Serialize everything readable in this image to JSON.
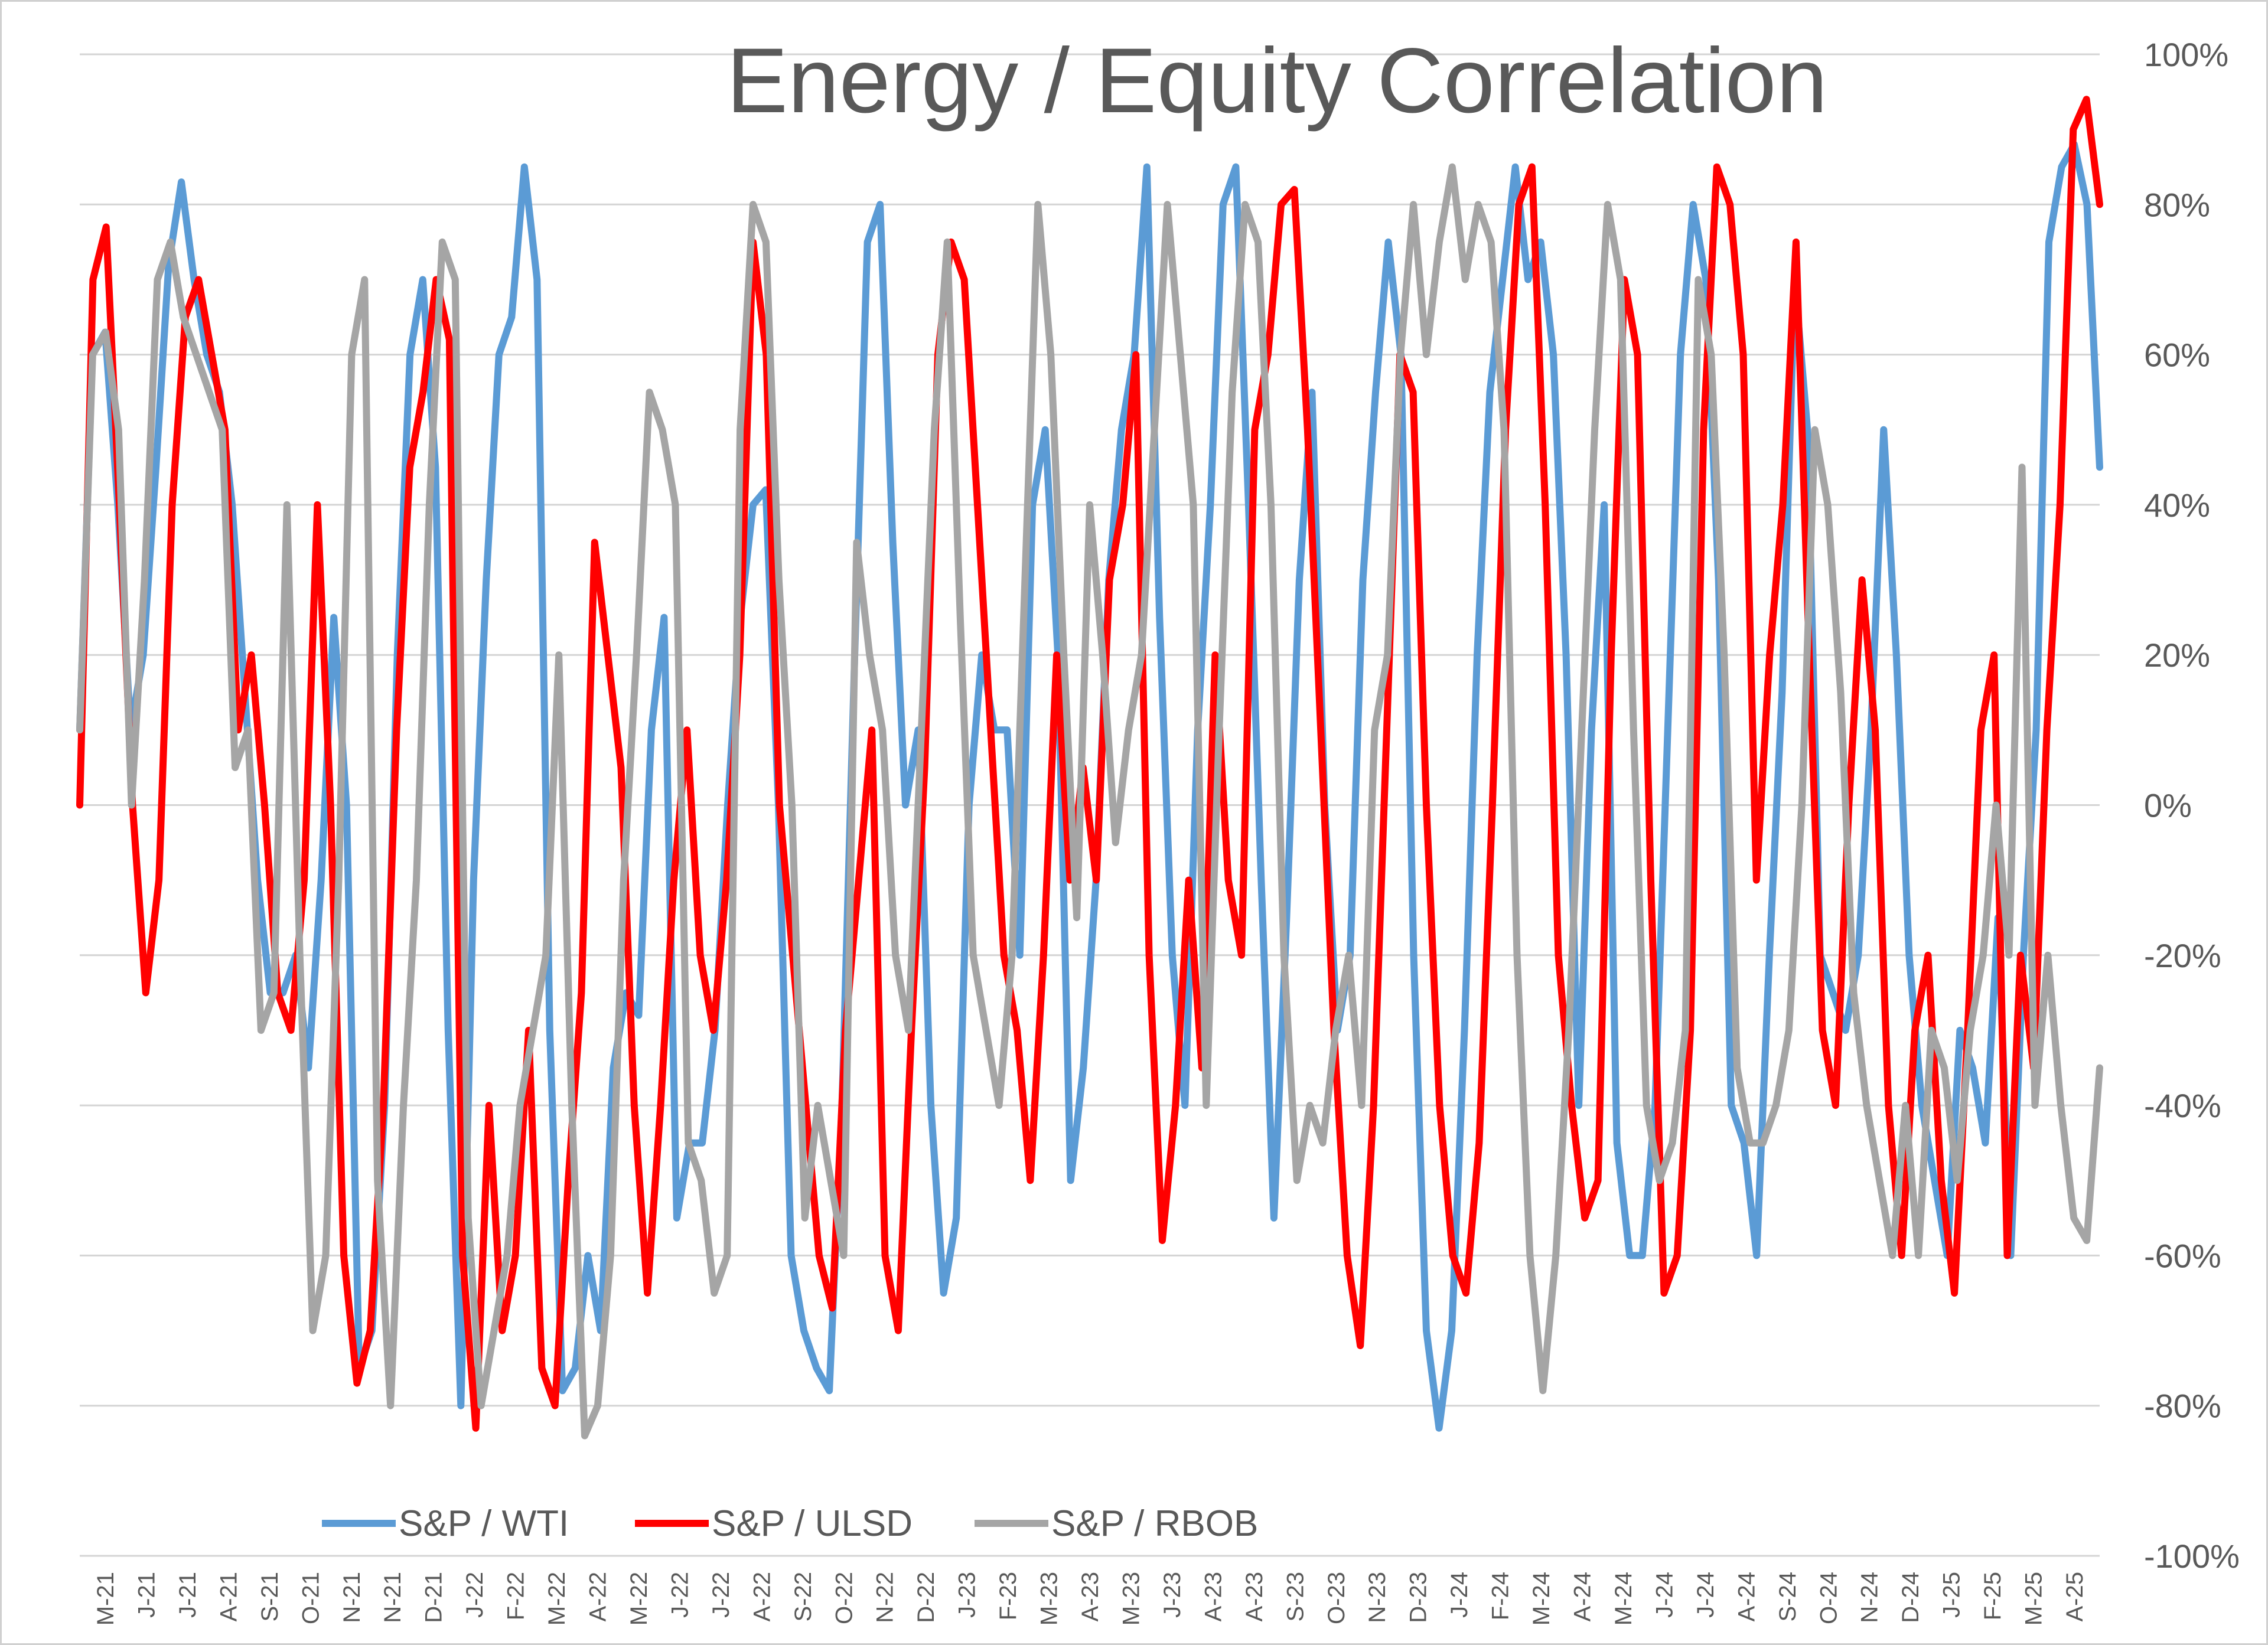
{
  "chart_data": {
    "type": "line",
    "title": "Energy / Equity Correlation",
    "xlabel": "",
    "ylabel": "",
    "ylim": [
      -100,
      100
    ],
    "y_ticks": [
      "100%",
      "80%",
      "60%",
      "40%",
      "20%",
      "0%",
      "-20%",
      "-40%",
      "-60%",
      "-80%",
      "-100%"
    ],
    "x_ticks": [
      "M-21",
      "J-21",
      "J-21",
      "A-21",
      "S-21",
      "O-21",
      "N-21",
      "N-21",
      "D-21",
      "J-22",
      "F-22",
      "M-22",
      "A-22",
      "M-22",
      "J-22",
      "J-22",
      "A-22",
      "S-22",
      "O-22",
      "N-22",
      "D-22",
      "J-23",
      "F-23",
      "M-23",
      "A-23",
      "M-23",
      "J-23",
      "A-23",
      "A-23",
      "S-23",
      "O-23",
      "N-23",
      "D-23",
      "J-24",
      "F-24",
      "M-24",
      "A-24",
      "M-24",
      "J-24",
      "J-24",
      "A-24",
      "S-24",
      "O-24",
      "N-24",
      "D-24",
      "J-25",
      "F-25",
      "M-25",
      "A-25"
    ],
    "grid": true,
    "legend_position": "bottom",
    "colors": {
      "wti": "#5B9BD5",
      "ulsd": "#FF0000",
      "rbob": "#A5A5A5"
    },
    "series": [
      {
        "name": "S&P / WTI",
        "color": "#5B9BD5",
        "values": [
          10,
          60,
          63,
          40,
          10,
          20,
          45,
          72,
          83,
          70,
          60,
          55,
          40,
          15,
          -10,
          -25,
          -25,
          -20,
          -35,
          -10,
          25,
          0,
          -75,
          -70,
          -40,
          20,
          60,
          70,
          45,
          -30,
          -80,
          -10,
          30,
          60,
          65,
          85,
          70,
          -30,
          -78,
          -75,
          -60,
          -70,
          -35,
          -25,
          -28,
          10,
          25,
          -55,
          -45,
          -45,
          -30,
          0,
          25,
          40,
          42,
          0,
          -60,
          -70,
          -75,
          -78,
          -40,
          20,
          75,
          80,
          35,
          0,
          10,
          -40,
          -65,
          -55,
          0,
          20,
          10,
          10,
          -20,
          40,
          50,
          20,
          -50,
          -35,
          -10,
          30,
          50,
          60,
          85,
          25,
          -20,
          -40,
          10,
          40,
          80,
          85,
          40,
          -10,
          -55,
          -15,
          30,
          55,
          0,
          -30,
          -20,
          30,
          55,
          75,
          60,
          -20,
          -70,
          -83,
          -70,
          -30,
          20,
          55,
          70,
          85,
          70,
          75,
          60,
          20,
          -40,
          10,
          40,
          -45,
          -60,
          -60,
          -40,
          10,
          60,
          80,
          70,
          30,
          -40,
          -45,
          -60,
          -20,
          15,
          70,
          50,
          -20,
          -25,
          -30,
          -20,
          10,
          50,
          20,
          -20,
          -40,
          -50,
          -60,
          -30,
          -35,
          -45,
          -15,
          -60,
          -20,
          10,
          75,
          85,
          88,
          80,
          45
        ]
      },
      {
        "name": "S&P / ULSD",
        "color": "#FF0000",
        "values": [
          0,
          70,
          77,
          40,
          0,
          -25,
          -10,
          40,
          65,
          70,
          60,
          50,
          10,
          20,
          0,
          -25,
          -30,
          -10,
          40,
          0,
          -60,
          -77,
          -70,
          -40,
          10,
          45,
          55,
          70,
          62,
          -60,
          -83,
          -40,
          -70,
          -60,
          -30,
          -75,
          -80,
          -50,
          -25,
          35,
          20,
          5,
          -40,
          -65,
          -40,
          -10,
          10,
          -20,
          -30,
          -10,
          20,
          75,
          60,
          0,
          -20,
          -40,
          -60,
          -67,
          -30,
          -10,
          10,
          -60,
          -70,
          -30,
          5,
          60,
          75,
          70,
          40,
          10,
          -20,
          -30,
          -50,
          -20,
          20,
          -10,
          5,
          -10,
          30,
          40,
          60,
          -20,
          -58,
          -40,
          -10,
          -35,
          20,
          -10,
          -20,
          50,
          60,
          80,
          82,
          50,
          10,
          -30,
          -60,
          -72,
          -40,
          10,
          60,
          55,
          0,
          -40,
          -60,
          -65,
          -45,
          0,
          50,
          80,
          85,
          40,
          -20,
          -40,
          -55,
          -50,
          20,
          70,
          60,
          -10,
          -65,
          -60,
          -30,
          50,
          85,
          80,
          60,
          -10,
          20,
          40,
          75,
          20,
          -30,
          -40,
          0,
          30,
          10,
          -40,
          -60,
          -30,
          -20,
          -50,
          -65,
          -30,
          10,
          20,
          -60,
          -20,
          -35,
          10,
          40,
          90,
          94,
          80
        ]
      },
      {
        "name": "S&P / RBOB",
        "color": "#A5A5A5",
        "values": [
          10,
          60,
          63,
          50,
          0,
          30,
          70,
          75,
          65,
          60,
          55,
          50,
          5,
          10,
          -30,
          -25,
          40,
          -20,
          -70,
          -60,
          -10,
          60,
          70,
          -50,
          -80,
          -40,
          -10,
          40,
          75,
          70,
          -55,
          -80,
          -70,
          -60,
          -40,
          -30,
          -20,
          20,
          -40,
          -84,
          -80,
          -60,
          -10,
          20,
          55,
          50,
          40,
          -45,
          -50,
          -65,
          -60,
          50,
          80,
          75,
          30,
          0,
          -55,
          -40,
          -50,
          -60,
          35,
          20,
          10,
          -20,
          -30,
          10,
          50,
          75,
          25,
          -20,
          -30,
          -40,
          -20,
          30,
          80,
          60,
          20,
          -15,
          40,
          20,
          -5,
          10,
          20,
          50,
          80,
          60,
          40,
          -40,
          10,
          55,
          80,
          75,
          40,
          -20,
          -50,
          -40,
          -45,
          -30,
          -20,
          -40,
          10,
          20,
          60,
          80,
          60,
          75,
          85,
          70,
          80,
          75,
          50,
          -20,
          -60,
          -78,
          -60,
          -30,
          10,
          50,
          80,
          70,
          10,
          -40,
          -50,
          -45,
          -30,
          70,
          60,
          20,
          -35,
          -45,
          -45,
          -40,
          -30,
          0,
          50,
          40,
          15,
          -25,
          -40,
          -50,
          -60,
          -40,
          -60,
          -30,
          -35,
          -50,
          -30,
          -20,
          0,
          -20,
          45,
          -40,
          -20,
          -40,
          -55,
          -58,
          -35
        ]
      }
    ]
  }
}
